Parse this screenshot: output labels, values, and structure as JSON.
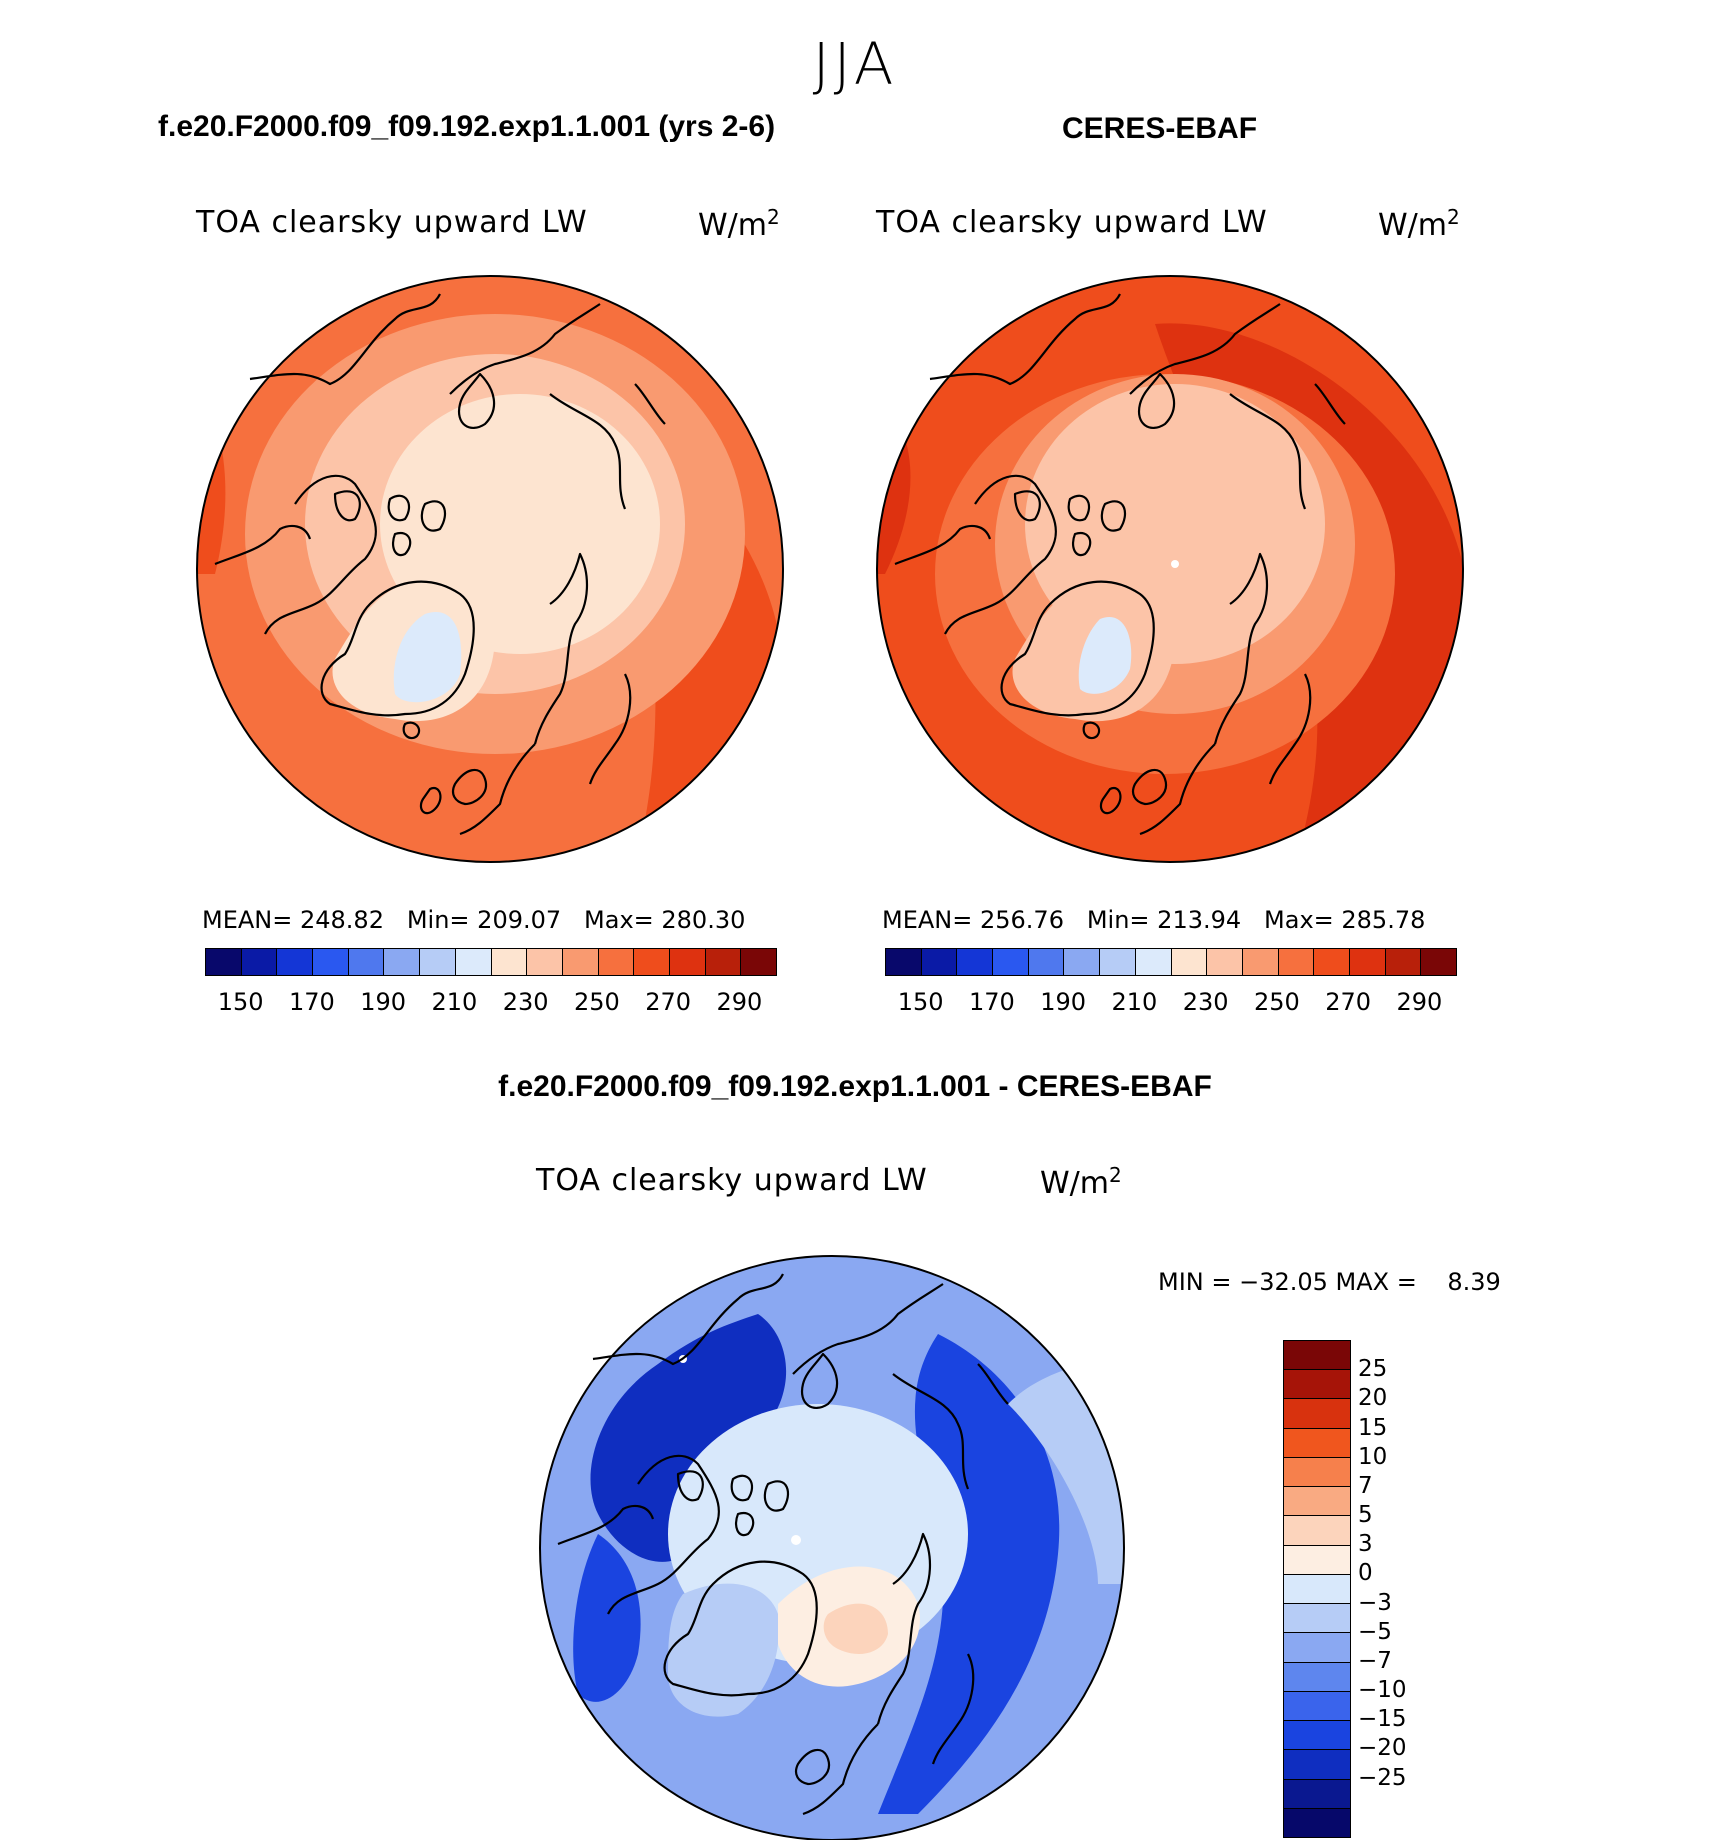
{
  "figure": {
    "season": "JJA"
  },
  "panels": [
    {
      "title": "f.e20.F2000.f09_f09.192.exp1.1.001 (yrs 2-6)",
      "label": "TOA clearsky upward LW",
      "units": "W/m",
      "units_exp": "2",
      "stats": "MEAN= 248.82   Min= 209.07   Max= 280.30"
    },
    {
      "title": "CERES-EBAF",
      "label": "TOA clearsky upward LW",
      "units": "W/m",
      "units_exp": "2",
      "stats": "MEAN= 256.76   Min= 213.94   Max= 285.78"
    }
  ],
  "diff_panel": {
    "title": "f.e20.F2000.f09_f09.192.exp1.1.001 - CERES-EBAF",
    "label": "TOA clearsky upward LW",
    "units": "W/m",
    "units_exp": "2",
    "stats": "MIN = −32.05 MAX =    8.39"
  },
  "colorbar_abs": {
    "colors": [
      "#08086b",
      "#0a1aa6",
      "#1436d6",
      "#2a58f0",
      "#4f78ee",
      "#8aa8f2",
      "#b6ccf6",
      "#dceafb",
      "#fde4d0",
      "#fcc4a8",
      "#f99a70",
      "#f6703e",
      "#ef4d1c",
      "#de3210",
      "#b8200a",
      "#7a0606"
    ],
    "tick_labels": [
      "150",
      "170",
      "190",
      "210",
      "230",
      "250",
      "270",
      "290"
    ]
  },
  "colorbar_diff": {
    "colors": [
      "#7a0606",
      "#a61408",
      "#d8320e",
      "#f0561e",
      "#f6804c",
      "#f9aa82",
      "#fcd4bc",
      "#fdeee2",
      "#d8e8fb",
      "#b6ccf6",
      "#8aa8f2",
      "#5e86ee",
      "#3a64ec",
      "#1a44e0",
      "#0f2ec0",
      "#0a1890",
      "#06086a"
    ],
    "tick_labels": [
      "25",
      "20",
      "15",
      "10",
      "7",
      "5",
      "3",
      "0",
      "−3",
      "−5",
      "−7",
      "−10",
      "−15",
      "−20",
      "−25"
    ]
  },
  "map_colors": {
    "abs_outer": "#f6703e",
    "abs_mid": "#f99a70",
    "abs_inner": "#fcc4a8",
    "abs_pole": "#fde4d0",
    "abs_greenland": "#dceafb",
    "abs_warm": "#ef4d1c",
    "abs_hot": "#de3210",
    "diff_base": "#8aa8f2",
    "diff_dark": "#1a44e0",
    "diff_darker": "#0f2ec0",
    "diff_light": "#d8e8fb",
    "diff_pale": "#b6ccf6",
    "diff_warm": "#fdeee2",
    "diff_warmer": "#fcd4bc"
  }
}
